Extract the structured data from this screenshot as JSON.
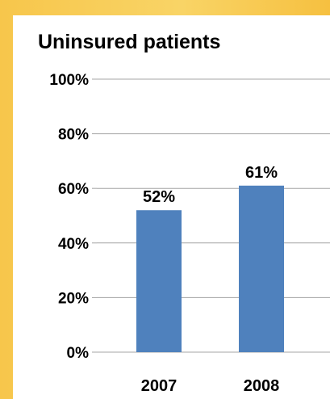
{
  "chart_data": {
    "type": "bar",
    "title": "Uninsured patients",
    "categories": [
      "2007",
      "2008"
    ],
    "values": [
      52,
      61
    ],
    "data_labels": [
      "52%",
      "61%"
    ],
    "ylim": [
      0,
      100
    ],
    "yticks": [
      0,
      20,
      40,
      60,
      80,
      100
    ],
    "ytick_labels": [
      "0%",
      "20%",
      "40%",
      "60%",
      "80%",
      "100%"
    ],
    "grid": true,
    "legend": "none",
    "colors": {
      "bar": "#4F81BD",
      "grid": "#A6A6A6",
      "background": "#FFFFFF",
      "frame": "#F8CC55"
    }
  }
}
